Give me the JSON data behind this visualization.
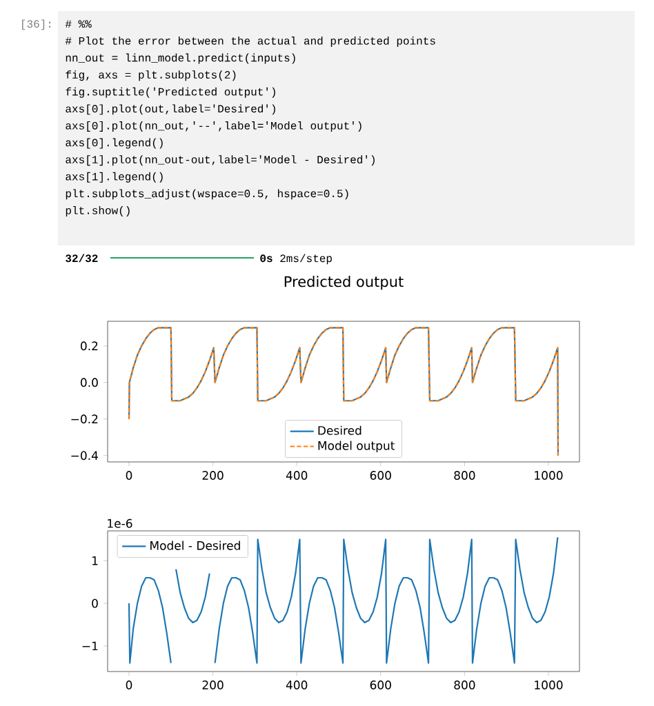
{
  "chart_data": [
    {
      "type": "line",
      "title": "Predicted output",
      "x": [
        0,
        1,
        10,
        20,
        30,
        40,
        50,
        60,
        70,
        80,
        100,
        102,
        112,
        122,
        132,
        142,
        152,
        162,
        172,
        182,
        192,
        202,
        205,
        215,
        225,
        235,
        245,
        255,
        265,
        275,
        285,
        305,
        307,
        317,
        327,
        337,
        347,
        357,
        367,
        377,
        387,
        397,
        407,
        410,
        420,
        430,
        440,
        450,
        460,
        470,
        480,
        490,
        510,
        512,
        522,
        532,
        542,
        552,
        562,
        572,
        582,
        592,
        602,
        612,
        614,
        624,
        634,
        644,
        654,
        664,
        674,
        684,
        694,
        714,
        717,
        727,
        737,
        747,
        757,
        767,
        777,
        787,
        797,
        807,
        817,
        819,
        829,
        839,
        849,
        859,
        869,
        879,
        889,
        899,
        919,
        922,
        932,
        942,
        952,
        962,
        972,
        982,
        992,
        1002,
        1012,
        1022,
        1023
      ],
      "series": [
        {
          "name": "Desired",
          "color": "#1f77b4",
          "line_style": "solid",
          "values": [
            -0.2,
            0.0,
            0.08,
            0.15,
            0.2,
            0.24,
            0.27,
            0.29,
            0.3,
            0.3,
            0.3,
            -0.1,
            -0.1,
            -0.1,
            -0.09,
            -0.08,
            -0.06,
            -0.03,
            0.01,
            0.06,
            0.12,
            0.19,
            0.0,
            0.08,
            0.15,
            0.2,
            0.24,
            0.27,
            0.29,
            0.3,
            0.3,
            0.3,
            -0.1,
            -0.1,
            -0.1,
            -0.09,
            -0.08,
            -0.06,
            -0.03,
            0.01,
            0.06,
            0.12,
            0.19,
            0.0,
            0.08,
            0.15,
            0.2,
            0.24,
            0.27,
            0.29,
            0.3,
            0.3,
            0.3,
            -0.1,
            -0.1,
            -0.1,
            -0.09,
            -0.08,
            -0.06,
            -0.03,
            0.01,
            0.06,
            0.12,
            0.19,
            0.0,
            0.08,
            0.15,
            0.2,
            0.24,
            0.27,
            0.29,
            0.3,
            0.3,
            0.3,
            -0.1,
            -0.1,
            -0.1,
            -0.09,
            -0.08,
            -0.06,
            -0.03,
            0.01,
            0.06,
            0.12,
            0.19,
            0.0,
            0.08,
            0.15,
            0.2,
            0.24,
            0.27,
            0.29,
            0.3,
            0.3,
            0.3,
            -0.1,
            -0.1,
            -0.1,
            -0.09,
            -0.08,
            -0.06,
            -0.03,
            0.01,
            0.06,
            0.12,
            0.19,
            -0.4
          ]
        },
        {
          "name": "Model output",
          "color": "#ff7f0e",
          "line_style": "dashed",
          "values": [
            -0.2,
            0.0,
            0.08,
            0.15,
            0.2,
            0.24,
            0.27,
            0.29,
            0.3,
            0.3,
            0.3,
            -0.1,
            -0.1,
            -0.1,
            -0.09,
            -0.08,
            -0.06,
            -0.03,
            0.01,
            0.06,
            0.12,
            0.19,
            0.0,
            0.08,
            0.15,
            0.2,
            0.24,
            0.27,
            0.29,
            0.3,
            0.3,
            0.3,
            -0.1,
            -0.1,
            -0.1,
            -0.09,
            -0.08,
            -0.06,
            -0.03,
            0.01,
            0.06,
            0.12,
            0.19,
            0.0,
            0.08,
            0.15,
            0.2,
            0.24,
            0.27,
            0.29,
            0.3,
            0.3,
            0.3,
            -0.1,
            -0.1,
            -0.1,
            -0.09,
            -0.08,
            -0.06,
            -0.03,
            0.01,
            0.06,
            0.12,
            0.19,
            0.0,
            0.08,
            0.15,
            0.2,
            0.24,
            0.27,
            0.29,
            0.3,
            0.3,
            0.3,
            -0.1,
            -0.1,
            -0.1,
            -0.09,
            -0.08,
            -0.06,
            -0.03,
            0.01,
            0.06,
            0.12,
            0.19,
            0.0,
            0.08,
            0.15,
            0.2,
            0.24,
            0.27,
            0.29,
            0.3,
            0.3,
            0.3,
            -0.1,
            -0.1,
            -0.1,
            -0.09,
            -0.08,
            -0.06,
            -0.03,
            0.01,
            0.06,
            0.12,
            0.19,
            -0.4
          ]
        }
      ],
      "xlim": [
        -51,
        1074
      ],
      "ylim": [
        -0.435,
        0.335
      ],
      "xticks": [
        0,
        200,
        400,
        600,
        800,
        1000
      ],
      "yticks": [
        {
          "value": -0.4,
          "label": "−0.4"
        },
        {
          "value": -0.2,
          "label": "−0.2"
        },
        {
          "value": 0,
          "label": "0.0"
        },
        {
          "value": 0.2,
          "label": "0.2"
        }
      ],
      "legend": "bottom",
      "annotations": [
        "[36]:",
        "# %%",
        "# Plot the error between the actual and predicted points",
        "nn_out = linn_model.predict(inputs)",
        "fig, axs = plt.subplots(2)",
        "fig.suptitle('Predicted output')",
        "axs[0].plot(out,label='Desired')",
        "axs[0].plot(nn_out,'--',label='Model output')",
        "axs[0].legend()",
        "axs[1].plot(nn_out-out,label='Model - Desired')",
        "axs[1].legend()",
        "plt.subplots_adjust(wspace=0.5, hspace=0.5)",
        "plt.show()",
        "32/32",
        "**0s** 2ms/step"
      ]
    },
    {
      "type": "line",
      "x": [
        0,
        2,
        10,
        20,
        30,
        40,
        50,
        60,
        70,
        80,
        90,
        100,
        102,
        112,
        122,
        132,
        142,
        152,
        162,
        172,
        182,
        192,
        202,
        205,
        215,
        225,
        235,
        245,
        255,
        265,
        275,
        285,
        295,
        305,
        307,
        317,
        327,
        337,
        347,
        357,
        367,
        377,
        387,
        397,
        407,
        410,
        420,
        430,
        440,
        450,
        460,
        470,
        480,
        490,
        500,
        510,
        512,
        522,
        532,
        542,
        552,
        562,
        572,
        582,
        592,
        602,
        612,
        614,
        624,
        634,
        644,
        654,
        664,
        674,
        684,
        694,
        704,
        714,
        717,
        727,
        737,
        747,
        757,
        767,
        777,
        787,
        797,
        807,
        817,
        819,
        829,
        839,
        849,
        859,
        869,
        879,
        889,
        899,
        909,
        919,
        922,
        932,
        942,
        952,
        962,
        972,
        982,
        992,
        1002,
        1012,
        1022
      ],
      "series": [
        {
          "name": "Model - Desired",
          "color": "#1f77b4",
          "line_style": "solid",
          "values": [
            0.0,
            -1.4,
            -0.6,
            0.0,
            0.4,
            0.6,
            0.6,
            0.55,
            0.3,
            -0.1,
            -0.7,
            -1.4,
            null,
            0.8,
            0.25,
            -0.1,
            -0.35,
            -0.45,
            -0.4,
            -0.2,
            0.15,
            0.7,
            null,
            -1.4,
            -0.6,
            0.0,
            0.4,
            0.6,
            0.6,
            0.55,
            0.3,
            -0.1,
            -0.7,
            -1.4,
            1.5,
            0.8,
            0.25,
            -0.1,
            -0.35,
            -0.45,
            -0.4,
            -0.2,
            0.15,
            0.7,
            1.5,
            -1.4,
            -0.6,
            0.0,
            0.4,
            0.6,
            0.6,
            0.55,
            0.3,
            -0.1,
            -0.7,
            -1.4,
            1.5,
            0.8,
            0.25,
            -0.1,
            -0.35,
            -0.45,
            -0.4,
            -0.2,
            0.15,
            0.7,
            1.5,
            -1.4,
            -0.6,
            0.0,
            0.4,
            0.6,
            0.6,
            0.55,
            0.3,
            -0.1,
            -0.7,
            -1.4,
            1.5,
            0.8,
            0.25,
            -0.1,
            -0.35,
            -0.45,
            -0.4,
            -0.2,
            0.15,
            0.7,
            1.5,
            -1.4,
            -0.6,
            0.0,
            0.4,
            0.6,
            0.6,
            0.55,
            0.3,
            -0.1,
            -0.7,
            -1.4,
            1.5,
            0.8,
            0.25,
            -0.1,
            -0.35,
            -0.45,
            -0.4,
            -0.2,
            0.15,
            0.7,
            1.55
          ]
        }
      ],
      "xlim": [
        -51,
        1074
      ],
      "ylim": [
        -1.6,
        1.7
      ],
      "xticks": [
        0,
        200,
        400,
        600,
        800,
        1000
      ],
      "yticks": [
        {
          "value": -1,
          "label": "−1"
        },
        0,
        1
      ],
      "legend": "top left",
      "annotations": [
        "1e-6"
      ]
    }
  ]
}
